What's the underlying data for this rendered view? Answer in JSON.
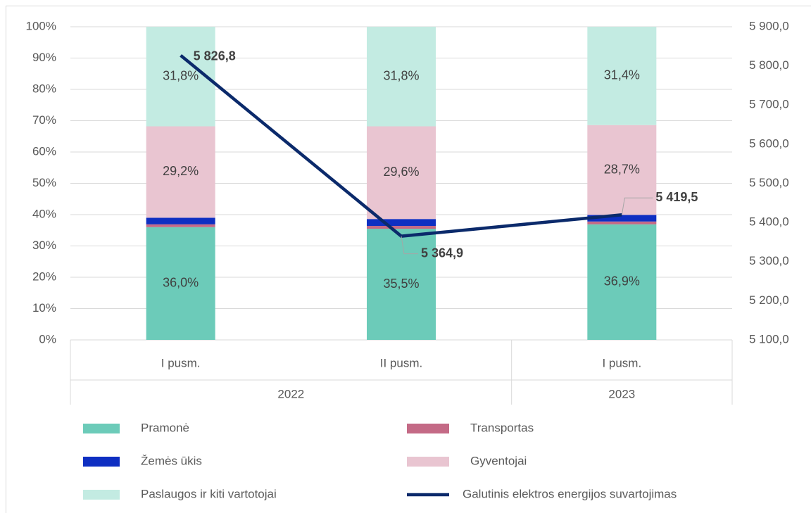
{
  "chart_data": {
    "type": "bar",
    "stacked": true,
    "categories": [
      "I pusm.",
      "II pusm.",
      "I pusm."
    ],
    "category_groups": [
      {
        "label": "2022",
        "span": 2
      },
      {
        "label": "2023",
        "span": 1
      }
    ],
    "ylim": [
      0,
      100
    ],
    "yticks": [
      {
        "value": 0,
        "label": "0%"
      },
      {
        "value": 10,
        "label": "10%"
      },
      {
        "value": 20,
        "label": "20%"
      },
      {
        "value": 30,
        "label": "30%"
      },
      {
        "value": 40,
        "label": "40%"
      },
      {
        "value": 50,
        "label": "50%"
      },
      {
        "value": 60,
        "label": "60%"
      },
      {
        "value": 70,
        "label": "70%"
      },
      {
        "value": 80,
        "label": "80%"
      },
      {
        "value": 90,
        "label": "90%"
      },
      {
        "value": 100,
        "label": "100%"
      }
    ],
    "y2lim": [
      5100,
      5900
    ],
    "y2ticks": [
      {
        "value": 5100,
        "label": "5 100,0"
      },
      {
        "value": 5200,
        "label": "5 200,0"
      },
      {
        "value": 5300,
        "label": "5 300,0"
      },
      {
        "value": 5400,
        "label": "5 400,0"
      },
      {
        "value": 5500,
        "label": "5 500,0"
      },
      {
        "value": 5600,
        "label": "5 600,0"
      },
      {
        "value": 5700,
        "label": "5 700,0"
      },
      {
        "value": 5800,
        "label": "5 800,0"
      },
      {
        "value": 5900,
        "label": "5 900,0"
      }
    ],
    "grid": true,
    "series": [
      {
        "name": "Pramonė",
        "color": "#6ccbb9",
        "type": "bar",
        "values": [
          36.0,
          35.5,
          36.9
        ],
        "value_labels": [
          "36,0%",
          "35,5%",
          "36,9%"
        ]
      },
      {
        "name": "Transportas",
        "color": "#c46a86",
        "type": "bar",
        "values": [
          0.9,
          0.9,
          0.9
        ]
      },
      {
        "name": "Žemės ūkis",
        "color": "#0e2fc2",
        "type": "bar",
        "values": [
          2.1,
          2.2,
          2.1
        ]
      },
      {
        "name": "Gyventojai",
        "color": "#e9c5d1",
        "type": "bar",
        "values": [
          29.2,
          29.6,
          28.7
        ],
        "value_labels": [
          "29,2%",
          "29,6%",
          "28,7%"
        ]
      },
      {
        "name": "Paslaugos ir kiti vartotojai",
        "color": "#c3ebe2",
        "type": "bar",
        "values": [
          31.8,
          31.8,
          31.4
        ],
        "value_labels": [
          "31,8%",
          "31,8%",
          "31,4%"
        ]
      },
      {
        "name": "Galutinis elektros energijos suvartojimas",
        "color": "#0b2a6b",
        "type": "line",
        "axis": "y2",
        "values": [
          5826.8,
          5364.9,
          5419.5
        ],
        "value_labels": [
          "5 826,8",
          "5 364,9",
          "5 419,5"
        ]
      }
    ]
  }
}
